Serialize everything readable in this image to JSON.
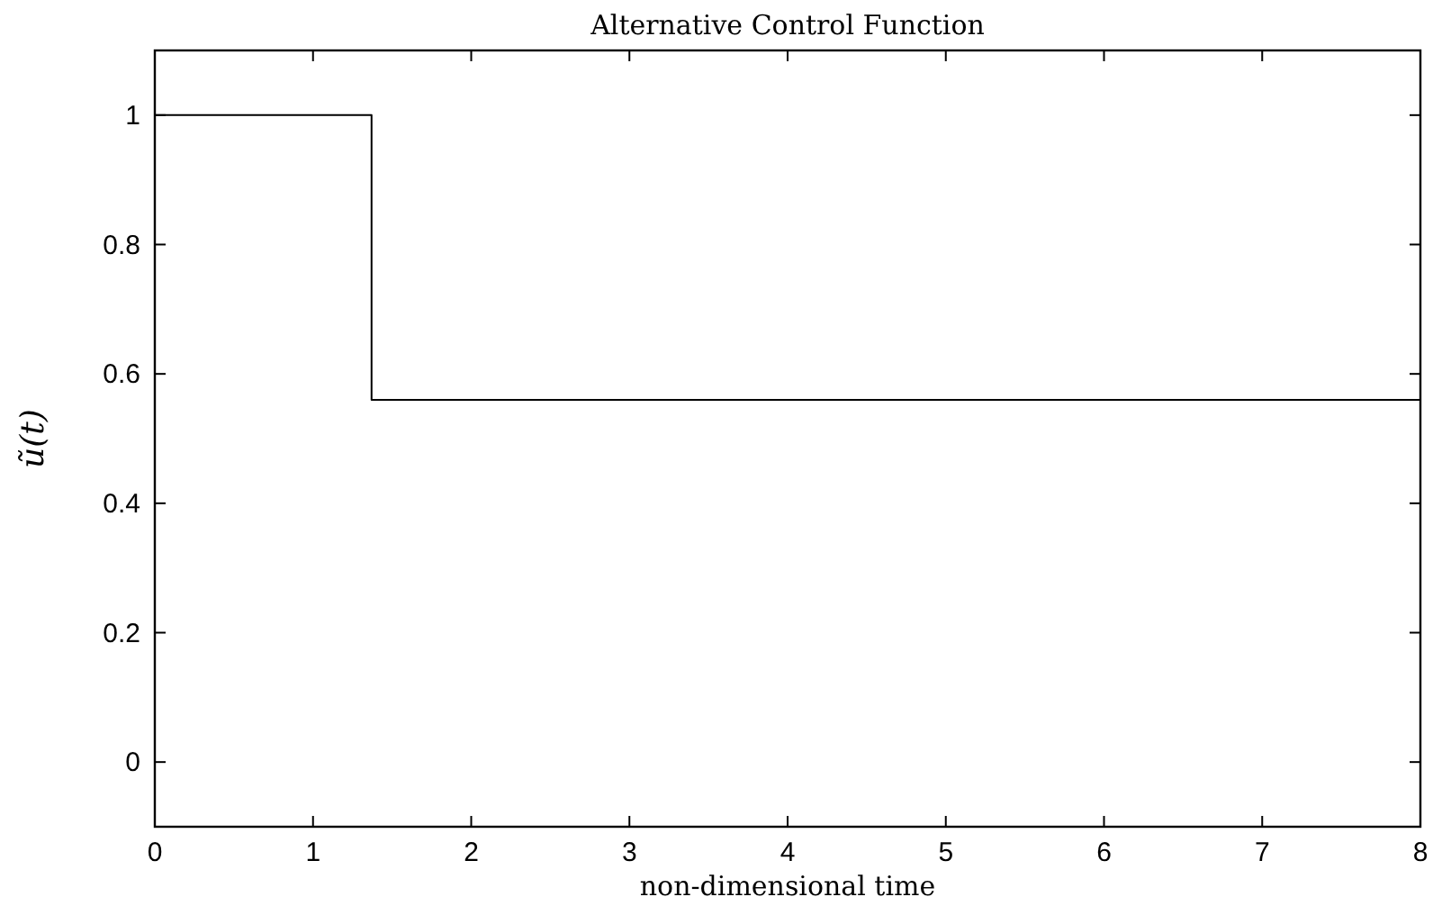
{
  "chart_data": {
    "type": "step",
    "title": "Alternative Control Function",
    "xlabel": "non-dimensional time",
    "ylabel": "ũ(t)",
    "x": [
      0,
      1.37,
      8
    ],
    "series": [
      {
        "color": "#000000",
        "values": [
          1,
          0.56,
          0.56
        ]
      }
    ],
    "xlim": [
      0,
      8
    ],
    "xticks": [
      0,
      1,
      2,
      3,
      4,
      5,
      6,
      7,
      8
    ],
    "ylim": [
      -0.1,
      1.1
    ],
    "yticks": [
      0,
      0.2,
      0.4,
      0.6,
      0.8,
      1
    ],
    "grid": false
  }
}
